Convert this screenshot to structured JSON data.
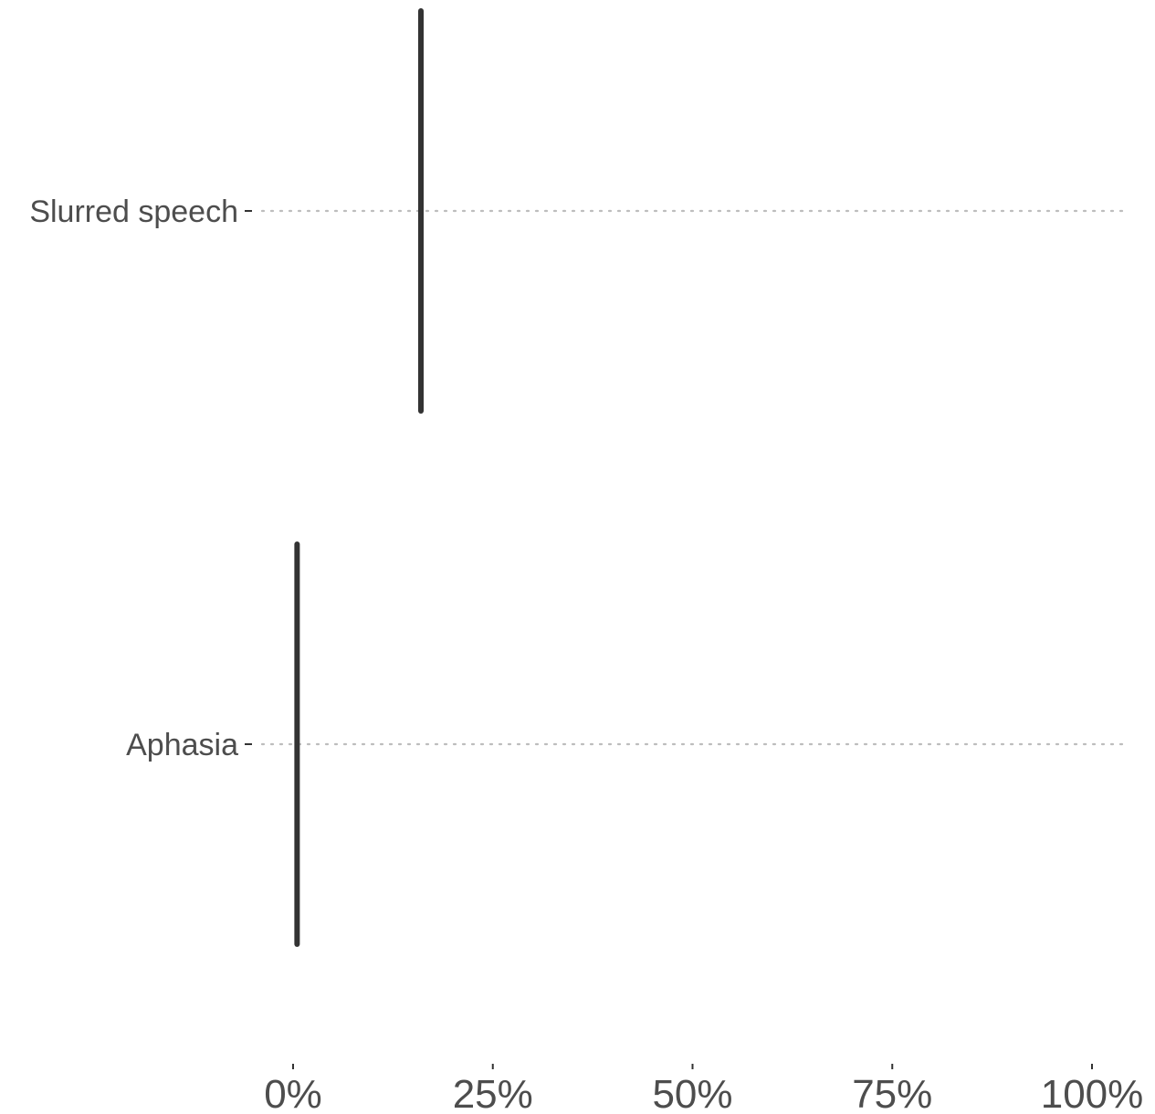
{
  "chart_data": {
    "type": "line",
    "title": "",
    "xlabel": "",
    "ylabel": "",
    "categories": [
      "Slurred speech",
      "Aphasia"
    ],
    "values": [
      0.16,
      0.005
    ],
    "x_unit": "percent",
    "xlim": [
      0,
      1.05
    ],
    "x_ticks": [
      0,
      0.25,
      0.5,
      0.75,
      1.0
    ],
    "x_tick_labels": [
      "0%",
      "25%",
      "50%",
      "75%",
      "100%"
    ],
    "grid": "horizontal dotted",
    "legend": "none",
    "colors": {
      "line": "#333333",
      "grid": "#bdbdbd",
      "text": "#4d4d4d"
    }
  }
}
